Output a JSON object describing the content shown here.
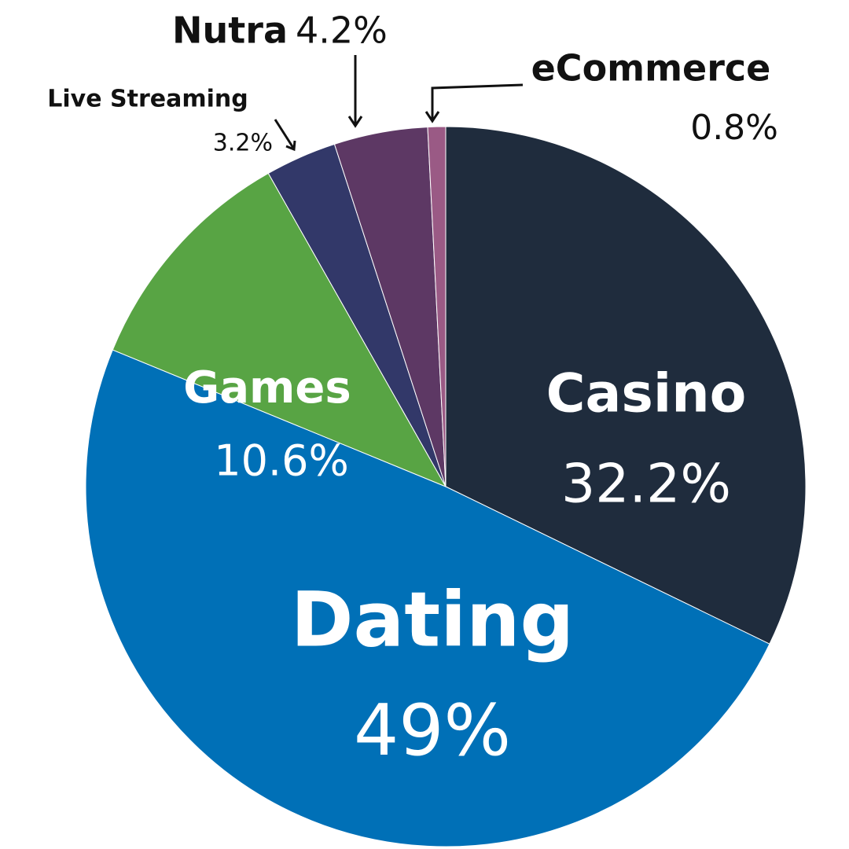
{
  "chart_data": {
    "type": "pie",
    "categories": [
      "Casino",
      "Dating",
      "Games",
      "Live Streaming",
      "Nutra",
      "eCommerce"
    ],
    "values": [
      32.2,
      49,
      10.6,
      3.2,
      4.2,
      0.8
    ],
    "value_labels": [
      "32.2%",
      "49%",
      "10.6%",
      "3.2%",
      "4.2%",
      "0.8%"
    ],
    "colors": [
      "#1f2c3d",
      "#0070b7",
      "#58a444",
      "#323869",
      "#5d3864",
      "#9a5a85"
    ]
  }
}
